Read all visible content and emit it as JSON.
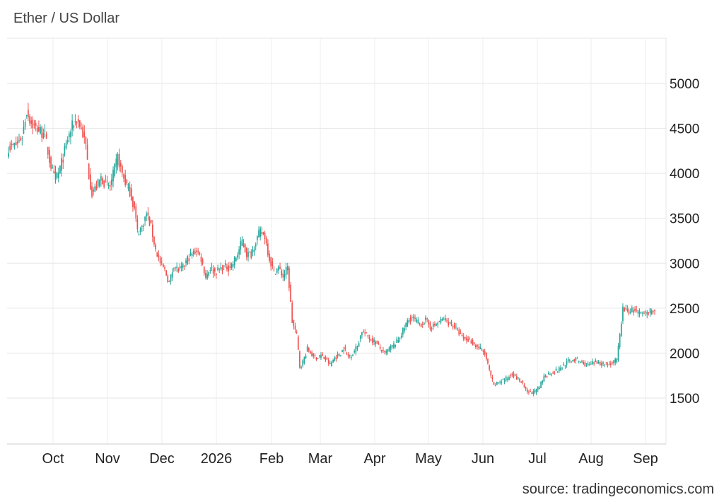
{
  "chart_data": {
    "type": "candlestick",
    "title": "Ether / US Dollar",
    "source": "source: tradingeconomics.com",
    "x_ticks": [
      "Oct",
      "Nov",
      "Dec",
      "2026",
      "Feb",
      "Mar",
      "Apr",
      "May",
      "Jun",
      "Jul",
      "Aug",
      "Sep"
    ],
    "y_ticks": [
      5000,
      4500,
      4000,
      3500,
      3000,
      2500,
      2000,
      1500
    ],
    "ylim": [
      1000,
      5500
    ],
    "grid": true,
    "up_color": "#26a69a",
    "down_color": "#ef5350",
    "close_path": [
      [
        0,
        4290
      ],
      [
        3,
        4300
      ],
      [
        6,
        4330
      ],
      [
        9,
        4420
      ],
      [
        12,
        4690
      ],
      [
        15,
        4560
      ],
      [
        18,
        4500
      ],
      [
        21,
        4470
      ],
      [
        24,
        4420
      ],
      [
        27,
        4150
      ],
      [
        30,
        3950
      ],
      [
        33,
        4000
      ],
      [
        36,
        4180
      ],
      [
        39,
        4380
      ],
      [
        42,
        4520
      ],
      [
        45,
        4600
      ],
      [
        48,
        4500
      ],
      [
        51,
        4300
      ],
      [
        53,
        3980
      ],
      [
        55,
        3780
      ],
      [
        58,
        3850
      ],
      [
        61,
        3950
      ],
      [
        64,
        3880
      ],
      [
        67,
        3850
      ],
      [
        70,
        4050
      ],
      [
        72,
        4180
      ],
      [
        74,
        4050
      ],
      [
        77,
        3900
      ],
      [
        80,
        3800
      ],
      [
        83,
        3600
      ],
      [
        85,
        3350
      ],
      [
        88,
        3400
      ],
      [
        91,
        3550
      ],
      [
        94,
        3400
      ],
      [
        97,
        3150
      ],
      [
        100,
        3000
      ],
      [
        103,
        2920
      ],
      [
        106,
        2780
      ],
      [
        109,
        2980
      ],
      [
        112,
        2920
      ],
      [
        115,
        2950
      ],
      [
        118,
        3050
      ],
      [
        121,
        3100
      ],
      [
        124,
        3150
      ],
      [
        127,
        3050
      ],
      [
        130,
        2850
      ],
      [
        133,
        2950
      ],
      [
        136,
        2900
      ],
      [
        139,
        2930
      ],
      [
        142,
        2960
      ],
      [
        145,
        2950
      ],
      [
        148,
        3000
      ],
      [
        151,
        3100
      ],
      [
        154,
        3250
      ],
      [
        157,
        3100
      ],
      [
        160,
        3100
      ],
      [
        163,
        3250
      ],
      [
        166,
        3350
      ],
      [
        169,
        3300
      ],
      [
        172,
        3050
      ],
      [
        175,
        2900
      ],
      [
        178,
        2950
      ],
      [
        181,
        2850
      ],
      [
        184,
        2950
      ],
      [
        187,
        2350
      ],
      [
        190,
        2200
      ],
      [
        192,
        1850
      ],
      [
        194,
        1900
      ],
      [
        197,
        2050
      ],
      [
        200,
        1980
      ],
      [
        203,
        1950
      ],
      [
        206,
        1970
      ],
      [
        209,
        1930
      ],
      [
        212,
        1870
      ],
      [
        215,
        1950
      ],
      [
        218,
        1980
      ],
      [
        221,
        2050
      ],
      [
        224,
        1960
      ],
      [
        227,
        2000
      ],
      [
        230,
        2080
      ],
      [
        233,
        2250
      ],
      [
        236,
        2200
      ],
      [
        239,
        2150
      ],
      [
        242,
        2120
      ],
      [
        245,
        2050
      ],
      [
        248,
        1990
      ],
      [
        251,
        2050
      ],
      [
        254,
        2090
      ],
      [
        257,
        2150
      ],
      [
        260,
        2250
      ],
      [
        263,
        2350
      ],
      [
        266,
        2400
      ],
      [
        269,
        2350
      ],
      [
        272,
        2320
      ],
      [
        275,
        2370
      ],
      [
        278,
        2290
      ],
      [
        281,
        2310
      ],
      [
        284,
        2350
      ],
      [
        287,
        2380
      ],
      [
        290,
        2340
      ],
      [
        293,
        2310
      ],
      [
        296,
        2250
      ],
      [
        299,
        2170
      ],
      [
        302,
        2150
      ],
      [
        305,
        2130
      ],
      [
        308,
        2080
      ],
      [
        311,
        2050
      ],
      [
        314,
        1990
      ],
      [
        317,
        1800
      ],
      [
        320,
        1630
      ],
      [
        323,
        1680
      ],
      [
        326,
        1700
      ],
      [
        329,
        1720
      ],
      [
        332,
        1780
      ],
      [
        335,
        1720
      ],
      [
        338,
        1680
      ],
      [
        341,
        1580
      ],
      [
        344,
        1560
      ],
      [
        347,
        1570
      ],
      [
        350,
        1620
      ],
      [
        353,
        1740
      ],
      [
        356,
        1770
      ],
      [
        359,
        1790
      ],
      [
        362,
        1810
      ],
      [
        365,
        1850
      ],
      [
        368,
        1900
      ],
      [
        371,
        1920
      ],
      [
        374,
        1930
      ],
      [
        377,
        1900
      ],
      [
        380,
        1880
      ],
      [
        383,
        1860
      ],
      [
        386,
        1890
      ],
      [
        389,
        1900
      ],
      [
        392,
        1880
      ],
      [
        395,
        1880
      ],
      [
        398,
        1890
      ],
      [
        401,
        1920
      ],
      [
        403,
        2200
      ],
      [
        405,
        2500
      ],
      [
        408,
        2460
      ],
      [
        411,
        2480
      ],
      [
        414,
        2460
      ],
      [
        417,
        2430
      ],
      [
        420,
        2450
      ],
      [
        423,
        2470
      ],
      [
        426,
        2460
      ]
    ]
  }
}
